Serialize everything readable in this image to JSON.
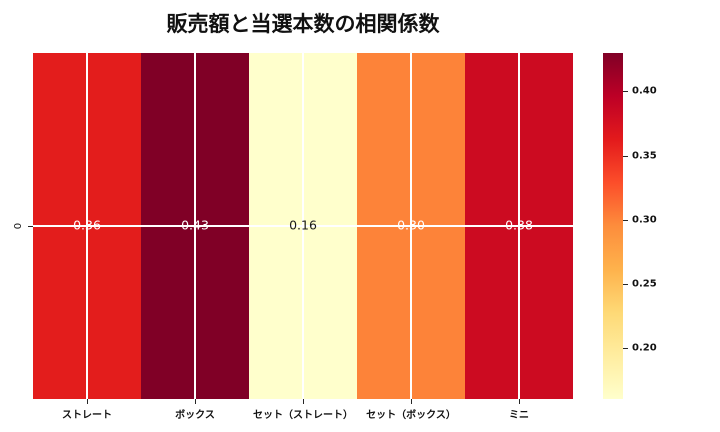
{
  "title": "販売額と当選本数の相関係数",
  "y_axis": {
    "row_label": "0"
  },
  "chart_data": {
    "type": "heatmap",
    "title": "販売額と当選本数の相関係数",
    "categories": [
      "ストレート",
      "ボックス",
      "セット（ストレート）",
      "セット（ボックス）",
      "ミニ"
    ],
    "rows": [
      "0"
    ],
    "values": [
      [
        0.36,
        0.43,
        0.16,
        0.3,
        0.38
      ]
    ],
    "cell_labels": [
      [
        "0.36",
        "0.43",
        "0.16",
        "0.30",
        "0.38"
      ]
    ],
    "cell_colors": [
      [
        "#e31d1c",
        "#800026",
        "#ffffcc",
        "#fd8339",
        "#cc0b21"
      ]
    ],
    "cell_text_colors": [
      [
        "#ffffff",
        "#ffffff",
        "#1a1a1a",
        "#ffffff",
        "#ffffff"
      ]
    ],
    "colormap": "YlOrRd",
    "vmin": 0.16,
    "vmax": 0.43,
    "grid": true,
    "grid_color": "#ffffff",
    "colorbar": {
      "position": "right",
      "tick_labels": [
        "0.40",
        "0.35",
        "0.30",
        "0.25",
        "0.20"
      ],
      "tick_values": [
        0.4,
        0.35,
        0.3,
        0.25,
        0.2
      ],
      "gradient_top_to_bottom": [
        "#800026",
        "#bd0026",
        "#e31a1c",
        "#fc4e2a",
        "#fd8d3c",
        "#feb24c",
        "#fed976",
        "#ffeda0",
        "#ffffcc"
      ]
    }
  }
}
